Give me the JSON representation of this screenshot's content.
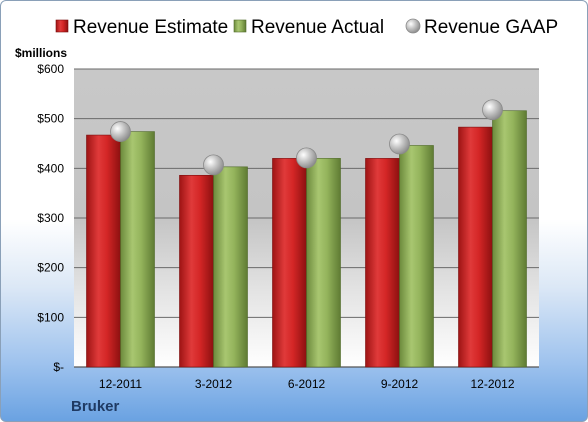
{
  "chart_data": {
    "type": "bar",
    "unit_label": "$millions",
    "company": "Bruker",
    "categories": [
      "12-2011",
      "3-2012",
      "6-2012",
      "9-2012",
      "12-2012"
    ],
    "series": [
      {
        "name": "Revenue Estimate",
        "kind": "bar",
        "color": "#d42a2a",
        "values": [
          467,
          386,
          420,
          420,
          483
        ]
      },
      {
        "name": "Revenue Actual",
        "kind": "bar",
        "color": "#8fb05a",
        "values": [
          474,
          403,
          420,
          446,
          516
        ]
      },
      {
        "name": "Revenue GAAP",
        "kind": "marker",
        "color": "#c0c0c0",
        "values": [
          474,
          407,
          421,
          449,
          518
        ]
      }
    ],
    "ylim": [
      0,
      600
    ],
    "yticks": [
      0,
      100,
      200,
      300,
      400,
      500,
      600
    ],
    "ytick_labels": [
      "$-",
      "$100",
      "$200",
      "$300",
      "$400",
      "$500",
      "$600"
    ],
    "grid": true,
    "legend_position": "top"
  }
}
